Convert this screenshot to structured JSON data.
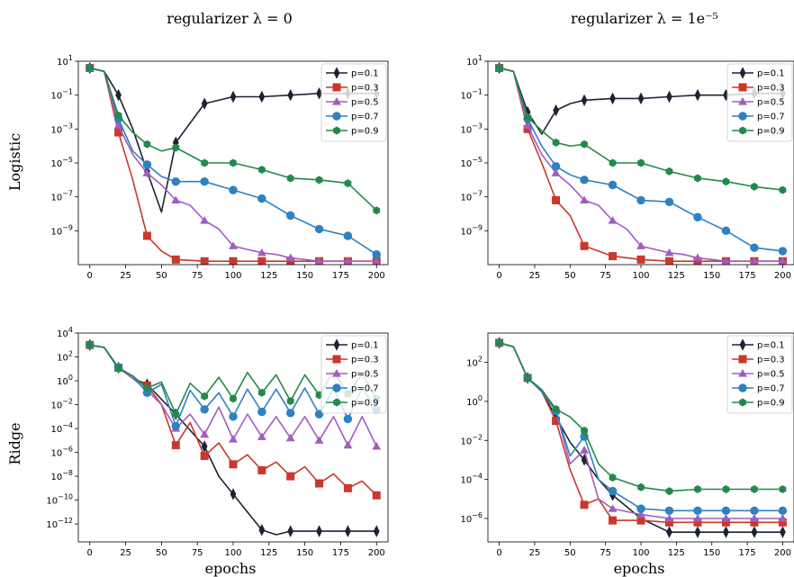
{
  "col_titles": [
    "regularizer λ = 0",
    "regularizer λ = 1e⁻⁵"
  ],
  "row_labels": [
    "Logistic",
    "Ridge"
  ],
  "xlabel": "epochs",
  "colors": {
    "p=0.1": "#1b2333",
    "p=0.3": "#c9382c",
    "p=0.5": "#a25cbf",
    "p=0.7": "#2f81c0",
    "p=0.9": "#23894a"
  },
  "chart_data": [
    {
      "type": "line",
      "panel": "Logistic, λ = 0",
      "yscale": "log",
      "xlim": [
        -8,
        208
      ],
      "ylim_exp": [
        -11,
        1
      ],
      "xticks": [
        0,
        25,
        50,
        75,
        100,
        125,
        150,
        175,
        200
      ],
      "yticks": [
        "10^1",
        "10^-1",
        "10^-3",
        "10^-5",
        "10^-7",
        "10^-9"
      ],
      "legend": "top-right",
      "series": [
        {
          "name": "p=0.1",
          "marker": "diamond",
          "x": [
            0,
            10,
            20,
            30,
            40,
            50,
            60,
            80,
            100,
            120,
            140,
            160,
            180,
            200
          ],
          "y_exp": [
            0.6,
            0.4,
            -1.0,
            -3.0,
            -5.5,
            -7.9,
            -3.8,
            -1.5,
            -1.1,
            -1.1,
            -1.0,
            -0.9,
            -0.9,
            -0.9
          ]
        },
        {
          "name": "p=0.3",
          "marker": "square",
          "x": [
            0,
            10,
            20,
            30,
            40,
            50,
            60,
            80,
            100,
            120,
            140,
            160,
            180,
            200
          ],
          "y_exp": [
            0.6,
            0.4,
            -3.2,
            -6.0,
            -9.3,
            -10.2,
            -10.7,
            -10.8,
            -10.8,
            -10.8,
            -10.8,
            -10.8,
            -10.8,
            -10.8
          ]
        },
        {
          "name": "p=0.5",
          "marker": "triangle",
          "x": [
            0,
            10,
            20,
            30,
            40,
            50,
            60,
            70,
            80,
            90,
            100,
            110,
            120,
            130,
            140,
            150,
            160,
            170,
            180,
            190,
            200
          ],
          "y_exp": [
            0.6,
            0.4,
            -2.8,
            -4.5,
            -5.6,
            -6.3,
            -7.2,
            -7.5,
            -8.4,
            -8.9,
            -9.9,
            -10.1,
            -10.3,
            -10.4,
            -10.6,
            -10.7,
            -10.8,
            -10.8,
            -10.8,
            -10.8,
            -10.8
          ]
        },
        {
          "name": "p=0.7",
          "marker": "circle",
          "x": [
            0,
            10,
            20,
            30,
            40,
            50,
            60,
            80,
            100,
            120,
            140,
            160,
            180,
            200
          ],
          "y_exp": [
            0.6,
            0.4,
            -2.4,
            -4.3,
            -5.1,
            -5.8,
            -6.1,
            -6.1,
            -6.6,
            -7.1,
            -8.1,
            -8.9,
            -9.3,
            -10.4
          ]
        },
        {
          "name": "p=0.9",
          "marker": "hexagon",
          "x": [
            0,
            10,
            20,
            30,
            40,
            50,
            60,
            80,
            100,
            120,
            140,
            160,
            180,
            200
          ],
          "y_exp": [
            0.6,
            0.4,
            -2.2,
            -3.2,
            -3.9,
            -4.3,
            -4.1,
            -5.0,
            -5.0,
            -5.4,
            -5.9,
            -6.0,
            -6.2,
            -7.8
          ]
        }
      ]
    },
    {
      "type": "line",
      "panel": "Logistic, λ = 1e-5",
      "yscale": "log",
      "xlim": [
        -8,
        208
      ],
      "ylim_exp": [
        -11,
        1
      ],
      "xticks": [
        0,
        25,
        50,
        75,
        100,
        125,
        150,
        175,
        200
      ],
      "yticks": [
        "10^1",
        "10^-1",
        "10^-3",
        "10^-5",
        "10^-7",
        "10^-9"
      ],
      "legend": "top-right",
      "series": [
        {
          "name": "p=0.1",
          "marker": "diamond",
          "x": [
            0,
            10,
            20,
            30,
            40,
            50,
            60,
            80,
            100,
            120,
            140,
            160,
            180,
            200
          ],
          "y_exp": [
            0.6,
            0.4,
            -2.0,
            -3.3,
            -1.9,
            -1.5,
            -1.3,
            -1.2,
            -1.2,
            -1.1,
            -1.0,
            -1.0,
            -0.9,
            -0.9
          ]
        },
        {
          "name": "p=0.3",
          "marker": "square",
          "x": [
            0,
            10,
            20,
            30,
            40,
            50,
            60,
            80,
            100,
            120,
            140,
            160,
            180,
            200
          ],
          "y_exp": [
            0.6,
            0.4,
            -3.0,
            -5.0,
            -7.2,
            -8.1,
            -9.9,
            -10.5,
            -10.7,
            -10.8,
            -10.8,
            -10.8,
            -10.8,
            -10.8
          ]
        },
        {
          "name": "p=0.5",
          "marker": "triangle",
          "x": [
            0,
            10,
            20,
            30,
            40,
            50,
            60,
            70,
            80,
            90,
            100,
            110,
            120,
            130,
            140,
            150,
            160,
            170,
            180,
            190,
            200
          ],
          "y_exp": [
            0.6,
            0.4,
            -2.8,
            -4.5,
            -5.6,
            -6.3,
            -7.2,
            -7.5,
            -8.4,
            -8.9,
            -9.9,
            -10.1,
            -10.3,
            -10.4,
            -10.6,
            -10.7,
            -10.8,
            -10.8,
            -10.8,
            -10.8,
            -10.8
          ]
        },
        {
          "name": "p=0.7",
          "marker": "circle",
          "x": [
            0,
            10,
            20,
            30,
            40,
            50,
            60,
            80,
            100,
            120,
            140,
            160,
            180,
            200
          ],
          "y_exp": [
            0.6,
            0.4,
            -2.4,
            -4.0,
            -5.2,
            -5.7,
            -6.0,
            -6.3,
            -7.2,
            -7.3,
            -8.2,
            -9.0,
            -10.0,
            -10.2
          ]
        },
        {
          "name": "p=0.9",
          "marker": "hexagon",
          "x": [
            0,
            10,
            20,
            30,
            40,
            50,
            60,
            80,
            100,
            120,
            140,
            160,
            180,
            200
          ],
          "y_exp": [
            0.6,
            0.4,
            -2.3,
            -3.1,
            -3.8,
            -4.0,
            -3.9,
            -5.0,
            -5.0,
            -5.5,
            -5.9,
            -6.1,
            -6.4,
            -6.6
          ]
        }
      ]
    },
    {
      "type": "line",
      "panel": "Ridge, λ = 0",
      "yscale": "log",
      "xlim": [
        -8,
        208
      ],
      "ylim_exp": [
        -13.5,
        4
      ],
      "xticks": [
        0,
        25,
        50,
        75,
        100,
        125,
        150,
        175,
        200
      ],
      "yticks": [
        "10^4",
        "10^2",
        "10^0",
        "10^-2",
        "10^-4",
        "10^-6",
        "10^-8",
        "10^-10",
        "10^-12"
      ],
      "legend": "top-right",
      "series": [
        {
          "name": "p=0.1",
          "marker": "diamond",
          "x": [
            0,
            10,
            20,
            30,
            40,
            60,
            80,
            90,
            100,
            110,
            120,
            130,
            140,
            160,
            180,
            200
          ],
          "y_exp": [
            3.0,
            2.8,
            1.1,
            0.2,
            -0.3,
            -2.8,
            -5.5,
            -8.0,
            -9.5,
            -11.0,
            -12.5,
            -12.9,
            -12.6,
            -12.6,
            -12.6,
            -12.6
          ]
        },
        {
          "name": "p=0.3",
          "marker": "square",
          "x": [
            0,
            10,
            20,
            30,
            40,
            50,
            60,
            70,
            80,
            90,
            100,
            110,
            120,
            130,
            140,
            150,
            160,
            170,
            180,
            190,
            200
          ],
          "y_exp": [
            3.0,
            2.8,
            1.1,
            0.2,
            -0.4,
            -2.0,
            -5.4,
            -3.5,
            -6.3,
            -5.2,
            -7.0,
            -6.2,
            -7.5,
            -6.8,
            -8.0,
            -7.2,
            -8.6,
            -7.8,
            -9.0,
            -8.4,
            -9.6
          ]
        },
        {
          "name": "p=0.5",
          "marker": "triangle",
          "x": [
            0,
            10,
            20,
            30,
            40,
            50,
            60,
            70,
            80,
            90,
            100,
            110,
            120,
            130,
            140,
            150,
            160,
            170,
            180,
            190,
            200
          ],
          "y_exp": [
            3.0,
            2.8,
            1.1,
            0.2,
            -0.8,
            -2.0,
            -4.0,
            -2.8,
            -4.5,
            -2.2,
            -4.9,
            -2.8,
            -4.7,
            -3.0,
            -4.8,
            -3.0,
            -5.0,
            -3.0,
            -5.4,
            -3.0,
            -5.5
          ]
        },
        {
          "name": "p=0.7",
          "marker": "circle",
          "x": [
            0,
            10,
            20,
            30,
            40,
            50,
            60,
            70,
            80,
            90,
            100,
            110,
            120,
            130,
            140,
            150,
            160,
            170,
            180,
            190,
            200
          ],
          "y_exp": [
            3.0,
            2.8,
            1.1,
            0.4,
            -1.0,
            -0.3,
            -3.8,
            -0.8,
            -2.4,
            -1.0,
            -3.0,
            -0.7,
            -2.6,
            -0.7,
            -2.7,
            -0.6,
            -2.8,
            -0.6,
            -3.2,
            -0.6,
            -2.4
          ]
        },
        {
          "name": "p=0.9",
          "marker": "hexagon",
          "x": [
            0,
            10,
            20,
            30,
            40,
            50,
            60,
            70,
            80,
            90,
            100,
            110,
            120,
            130,
            140,
            150,
            160,
            170,
            180,
            190,
            200
          ],
          "y_exp": [
            3.0,
            2.8,
            1.0,
            0.4,
            -0.6,
            -0.1,
            -2.8,
            -0.2,
            -1.3,
            0.3,
            -1.5,
            0.7,
            -1.0,
            0.5,
            -1.7,
            0.5,
            -1.2,
            0.8,
            -1.1,
            0.6,
            -1.5
          ]
        }
      ]
    },
    {
      "type": "line",
      "panel": "Ridge, λ = 1e-5",
      "yscale": "log",
      "xlim": [
        -8,
        208
      ],
      "ylim_exp": [
        -7.2,
        3.5
      ],
      "xticks": [
        0,
        25,
        50,
        75,
        100,
        125,
        150,
        175,
        200
      ],
      "yticks": [
        "10^2",
        "10^0",
        "10^-2",
        "10^-4",
        "10^-6"
      ],
      "legend": "top-right",
      "series": [
        {
          "name": "p=0.1",
          "marker": "diamond",
          "x": [
            0,
            10,
            20,
            30,
            40,
            50,
            60,
            70,
            80,
            100,
            120,
            140,
            160,
            180,
            200
          ],
          "y_exp": [
            3.0,
            2.8,
            1.2,
            0.5,
            -0.8,
            -2.1,
            -3.0,
            -4.0,
            -4.8,
            -6.0,
            -6.7,
            -6.7,
            -6.7,
            -6.7,
            -6.7
          ]
        },
        {
          "name": "p=0.3",
          "marker": "square",
          "x": [
            0,
            10,
            20,
            30,
            40,
            50,
            60,
            70,
            80,
            100,
            120,
            140,
            160,
            180,
            200
          ],
          "y_exp": [
            3.0,
            2.8,
            1.2,
            0.5,
            -1.0,
            -3.5,
            -5.3,
            -5.0,
            -6.1,
            -6.1,
            -6.2,
            -6.2,
            -6.2,
            -6.2,
            -6.2
          ]
        },
        {
          "name": "p=0.5",
          "marker": "triangle",
          "x": [
            0,
            10,
            20,
            30,
            40,
            50,
            60,
            70,
            80,
            100,
            120,
            140,
            160,
            180,
            200
          ],
          "y_exp": [
            3.0,
            2.8,
            1.2,
            0.5,
            -0.5,
            -3.2,
            -2.5,
            -5.0,
            -5.5,
            -5.8,
            -6.0,
            -6.0,
            -6.0,
            -6.0,
            -6.0
          ]
        },
        {
          "name": "p=0.7",
          "marker": "circle",
          "x": [
            0,
            10,
            20,
            30,
            40,
            50,
            60,
            70,
            80,
            100,
            120,
            140,
            160,
            180,
            200
          ],
          "y_exp": [
            3.0,
            2.8,
            1.2,
            0.5,
            -0.5,
            -2.8,
            -1.8,
            -4.0,
            -4.6,
            -5.5,
            -5.6,
            -5.6,
            -5.6,
            -5.6,
            -5.6
          ]
        },
        {
          "name": "p=0.9",
          "marker": "hexagon",
          "x": [
            0,
            10,
            20,
            30,
            40,
            50,
            60,
            70,
            80,
            100,
            120,
            140,
            160,
            180,
            200
          ],
          "y_exp": [
            3.0,
            2.8,
            1.2,
            0.6,
            -0.4,
            -0.8,
            -1.5,
            -3.2,
            -3.9,
            -4.4,
            -4.6,
            -4.5,
            -4.5,
            -4.5,
            -4.5
          ]
        }
      ]
    }
  ]
}
